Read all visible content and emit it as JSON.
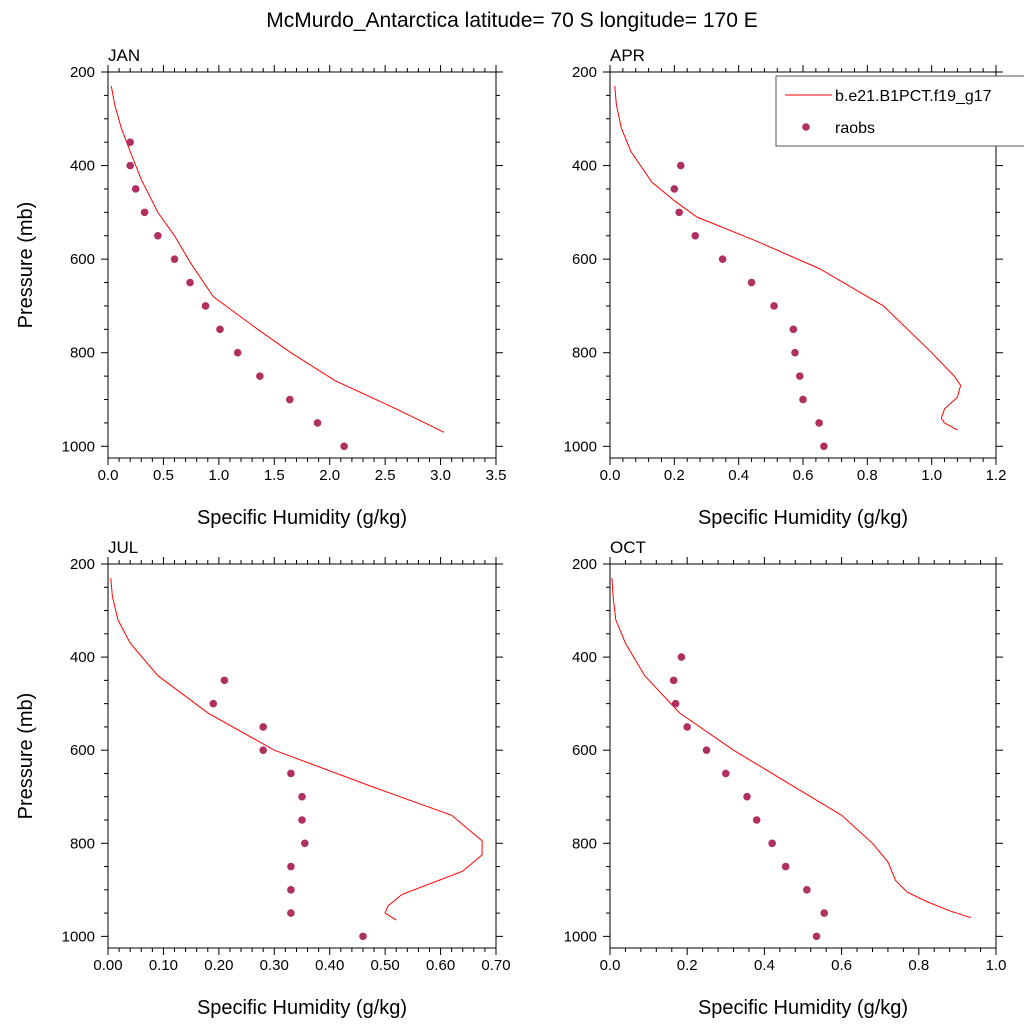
{
  "figure": {
    "title": "McMurdo_Antarctica  latitude= 70 S longitude= 170 E",
    "legend": {
      "model_label": "b.e21.B1PCT.f19_g17",
      "obs_label": "raobs",
      "model_color": "#ff0000",
      "obs_color": "#b03060",
      "placement": "top-right, upper-right panel"
    }
  },
  "chart_data": [
    {
      "type": "line",
      "title": "JAN",
      "xlabel": "Specific Humidity (g/kg)",
      "ylabel": "Pressure (mb)",
      "xlim": [
        0,
        3.5
      ],
      "ylim": [
        200,
        1025
      ],
      "y_inverted": true,
      "xticks": [
        0,
        0.5,
        1.0,
        1.5,
        2.0,
        2.5,
        3.0,
        3.5
      ],
      "xtick_labels": [
        "0.0",
        "0.5",
        "1.0",
        "1.5",
        "2.0",
        "2.5",
        "3.0",
        "3.5"
      ],
      "yticks": [
        200,
        400,
        600,
        800,
        1000
      ],
      "ytick_labels": [
        "200",
        "400",
        "600",
        "800",
        "1000"
      ],
      "series": [
        {
          "name": "b.e21.B1PCT.f19_g17",
          "kind": "line",
          "x": [
            0.03,
            0.06,
            0.12,
            0.2,
            0.3,
            0.45,
            0.6,
            0.75,
            0.95,
            1.35,
            1.65,
            2.05,
            2.6,
            2.9,
            3.03
          ],
          "y": [
            230,
            270,
            320,
            370,
            430,
            500,
            550,
            610,
            680,
            750,
            800,
            860,
            920,
            955,
            970
          ]
        },
        {
          "name": "raobs",
          "kind": "scatter",
          "x": [
            0.2,
            0.2,
            0.25,
            0.33,
            0.45,
            0.6,
            0.74,
            0.88,
            1.01,
            1.17,
            1.37,
            1.64,
            1.89,
            2.13
          ],
          "y": [
            350,
            400,
            450,
            500,
            550,
            600,
            650,
            700,
            750,
            800,
            850,
            900,
            950,
            1000
          ]
        }
      ]
    },
    {
      "type": "line",
      "title": "APR",
      "xlabel": "Specific Humidity (g/kg)",
      "ylabel": "",
      "xlim": [
        0,
        1.2
      ],
      "ylim": [
        200,
        1025
      ],
      "y_inverted": true,
      "xticks": [
        0,
        0.2,
        0.4,
        0.6,
        0.8,
        1.0,
        1.2
      ],
      "xtick_labels": [
        "0.0",
        "0.2",
        "0.4",
        "0.6",
        "0.8",
        "1.0",
        "1.2"
      ],
      "yticks": [
        200,
        400,
        600,
        800,
        1000
      ],
      "ytick_labels": [
        "200",
        "400",
        "600",
        "800",
        "1000"
      ],
      "series": [
        {
          "name": "b.e21.B1PCT.f19_g17",
          "kind": "line",
          "x": [
            0.015,
            0.02,
            0.035,
            0.065,
            0.13,
            0.2,
            0.27,
            0.45,
            0.65,
            0.85,
            1.0,
            1.07,
            1.09,
            1.08,
            1.04,
            1.03,
            1.04,
            1.08
          ],
          "y": [
            230,
            270,
            320,
            370,
            435,
            475,
            510,
            560,
            620,
            700,
            800,
            850,
            870,
            895,
            920,
            940,
            950,
            965
          ]
        },
        {
          "name": "raobs",
          "kind": "scatter",
          "x": [
            0.22,
            0.2,
            0.215,
            0.265,
            0.35,
            0.44,
            0.51,
            0.57,
            0.575,
            0.59,
            0.6,
            0.65,
            0.665
          ],
          "y": [
            400,
            450,
            500,
            550,
            600,
            650,
            700,
            750,
            800,
            850,
            900,
            950,
            1000
          ]
        }
      ]
    },
    {
      "type": "line",
      "title": "JUL",
      "xlabel": "Specific Humidity (g/kg)",
      "ylabel": "Pressure (mb)",
      "xlim": [
        0,
        0.7
      ],
      "ylim": [
        200,
        1025
      ],
      "y_inverted": true,
      "xticks": [
        0,
        0.1,
        0.2,
        0.3,
        0.4,
        0.5,
        0.6,
        0.7
      ],
      "xtick_labels": [
        "0.00",
        "0.10",
        "0.20",
        "0.30",
        "0.40",
        "0.50",
        "0.60",
        "0.70"
      ],
      "yticks": [
        200,
        400,
        600,
        800,
        1000
      ],
      "ytick_labels": [
        "200",
        "400",
        "600",
        "800",
        "1000"
      ],
      "series": [
        {
          "name": "b.e21.B1PCT.f19_g17",
          "kind": "line",
          "x": [
            0.005,
            0.008,
            0.018,
            0.04,
            0.09,
            0.18,
            0.3,
            0.48,
            0.62,
            0.675,
            0.675,
            0.64,
            0.53,
            0.505,
            0.5,
            0.52
          ],
          "y": [
            230,
            270,
            320,
            370,
            440,
            520,
            600,
            680,
            740,
            795,
            825,
            860,
            910,
            935,
            950,
            965
          ]
        },
        {
          "name": "raobs",
          "kind": "scatter",
          "x": [
            0.21,
            0.19,
            0.28,
            0.28,
            0.33,
            0.35,
            0.35,
            0.355,
            0.33,
            0.33,
            0.33,
            0.46
          ],
          "y": [
            450,
            500,
            550,
            600,
            650,
            700,
            750,
            800,
            850,
            900,
            950,
            1000
          ]
        }
      ]
    },
    {
      "type": "line",
      "title": "OCT",
      "xlabel": "Specific Humidity (g/kg)",
      "ylabel": "",
      "xlim": [
        0,
        1.0
      ],
      "ylim": [
        200,
        1025
      ],
      "y_inverted": true,
      "xticks": [
        0,
        0.2,
        0.4,
        0.6,
        0.8,
        1.0
      ],
      "xtick_labels": [
        "0.0",
        "0.2",
        "0.4",
        "0.6",
        "0.8",
        "1.0"
      ],
      "yticks": [
        200,
        400,
        600,
        800,
        1000
      ],
      "ytick_labels": [
        "200",
        "400",
        "600",
        "800",
        "1000"
      ],
      "series": [
        {
          "name": "b.e21.B1PCT.f19_g17",
          "kind": "line",
          "x": [
            0.005,
            0.008,
            0.015,
            0.04,
            0.09,
            0.18,
            0.32,
            0.48,
            0.6,
            0.68,
            0.72,
            0.74,
            0.77,
            0.82,
            0.88,
            0.935
          ],
          "y": [
            230,
            270,
            320,
            370,
            440,
            520,
            600,
            680,
            740,
            800,
            840,
            880,
            905,
            925,
            945,
            960
          ]
        },
        {
          "name": "raobs",
          "kind": "scatter",
          "x": [
            0.185,
            0.165,
            0.17,
            0.2,
            0.25,
            0.3,
            0.355,
            0.38,
            0.42,
            0.455,
            0.51,
            0.555,
            0.535
          ],
          "y": [
            400,
            450,
            500,
            550,
            600,
            650,
            700,
            750,
            800,
            850,
            900,
            950,
            1000
          ]
        }
      ]
    }
  ]
}
